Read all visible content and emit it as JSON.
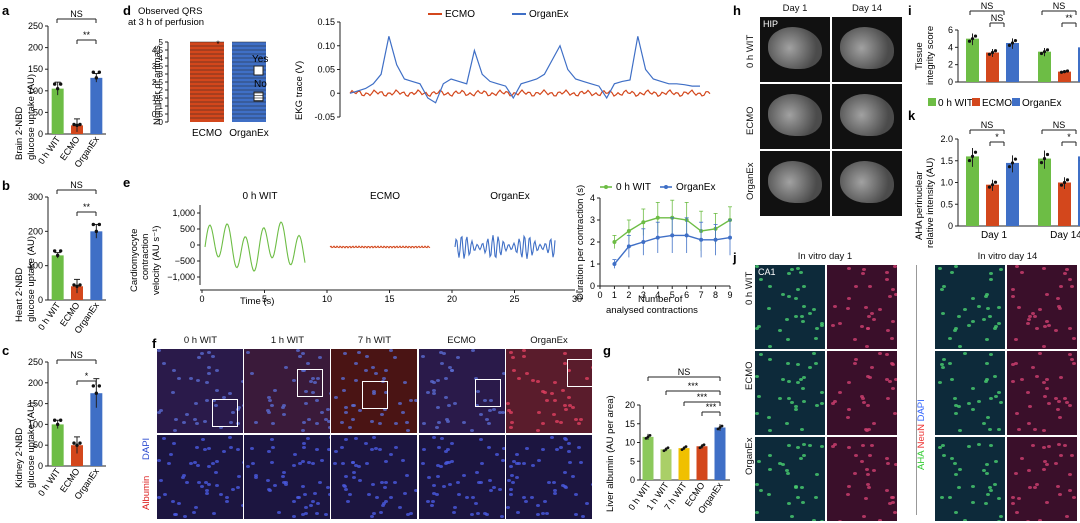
{
  "panel_letters": {
    "a": "a",
    "b": "b",
    "c": "c",
    "d": "d",
    "e": "e",
    "f": "f",
    "g": "g",
    "h": "h",
    "i": "i",
    "j": "j",
    "k": "k"
  },
  "colors": {
    "wit": "#6dbd45",
    "ecmo": "#d3471c",
    "organex": "#3f6fc6",
    "wit1": "#aacf67",
    "wit7": "#f0c000",
    "wit0light": "#8cc95c"
  },
  "chart_data": [
    {
      "id": "a",
      "type": "bar",
      "categories": [
        "0 h WIT",
        "ECMO",
        "OrganEx"
      ],
      "values": [
        105,
        20,
        130
      ],
      "errors": [
        15,
        15,
        10
      ],
      "ylabel": "Brain 2-NBD glucose uptake (AU)",
      "ylim": [
        0,
        250
      ],
      "yticks": [
        0,
        50,
        100,
        150,
        200,
        250
      ],
      "annotations": [
        "NS",
        "**"
      ]
    },
    {
      "id": "b",
      "type": "bar",
      "categories": [
        "0 h WIT",
        "ECMO",
        "OrganEx"
      ],
      "values": [
        130,
        40,
        200
      ],
      "errors": [
        8,
        20,
        20
      ],
      "ylabel": "Heart 2-NBD glucose uptake (AU)",
      "ylim": [
        0,
        300
      ],
      "yticks": [
        0,
        100,
        200,
        300
      ],
      "annotations": [
        "NS",
        "**"
      ]
    },
    {
      "id": "c",
      "type": "bar",
      "categories": [
        "0 h WIT",
        "ECMO",
        "OrganEx"
      ],
      "values": [
        100,
        50,
        175
      ],
      "errors": [
        10,
        20,
        35
      ],
      "ylabel": "Kidney 2-NBD glucose uptake (AU)",
      "ylim": [
        0,
        250
      ],
      "yticks": [
        0,
        50,
        100,
        150,
        200,
        250
      ],
      "annotations": [
        "NS",
        "*"
      ]
    },
    {
      "id": "d1",
      "type": "bar",
      "title": "Observed QRS at 3 h of perfusion",
      "categories": [
        "ECMO",
        "OrganEx"
      ],
      "values": [
        5,
        5
      ],
      "ylabel": "Number of animals",
      "ylim": [
        0,
        5
      ],
      "yticks": [
        0,
        0.5,
        1,
        1.5,
        2,
        2.5,
        3,
        3.5,
        4,
        4.5,
        5
      ],
      "legend": [
        "Yes",
        "No"
      ],
      "annotations": [
        "*"
      ]
    },
    {
      "id": "d2",
      "type": "line",
      "ylabel": "EKG trace (V)",
      "ylim": [
        -0.05,
        0.15
      ],
      "yticks": [
        -0.05,
        0,
        0.05,
        0.1,
        0.15
      ],
      "series": [
        {
          "name": "ECMO"
        },
        {
          "name": "OrganEx"
        }
      ]
    },
    {
      "id": "e1",
      "type": "line",
      "ylabel": "Cardiomyocyte contraction velocity (AU s⁻¹)",
      "xlabel": "Time (s)",
      "yticks": [
        "1,000",
        "500",
        "0",
        "−500",
        "−1,000"
      ],
      "xticks": [
        0,
        5,
        10,
        15,
        20,
        25,
        30
      ],
      "titles": [
        "0 h WIT",
        "ECMO",
        "OrganEx"
      ]
    },
    {
      "id": "e2",
      "type": "line",
      "ylabel": "Duration per contraction (s)",
      "xlabel": "Number of analysed contractions",
      "xticks": [
        0,
        1,
        2,
        3,
        4,
        5,
        6,
        7,
        8,
        9
      ],
      "yticks": [
        0,
        1,
        2,
        3,
        4
      ],
      "ylim": [
        0,
        4
      ],
      "series": [
        {
          "name": "0 h WIT",
          "x": [
            1,
            2,
            3,
            4,
            5,
            6,
            7,
            8,
            9
          ],
          "y": [
            2.0,
            2.5,
            2.9,
            3.1,
            3.1,
            3.0,
            2.5,
            2.6,
            3.0
          ],
          "err": [
            0.3,
            0.5,
            0.6,
            0.7,
            0.8,
            0.8,
            0.9,
            0.7,
            0.6
          ]
        },
        {
          "name": "OrganEx",
          "x": [
            1,
            2,
            3,
            4,
            5,
            6,
            7,
            8,
            9
          ],
          "y": [
            1.0,
            1.8,
            2.0,
            2.2,
            2.3,
            2.3,
            2.1,
            2.1,
            2.2
          ],
          "err": [
            0.2,
            0.5,
            0.6,
            0.7,
            0.8,
            0.8,
            0.8,
            0.7,
            0.8
          ]
        }
      ]
    },
    {
      "id": "g",
      "type": "bar",
      "categories": [
        "0 h WIT",
        "1 h WIT",
        "7 h WIT",
        "ECMO",
        "OrganEx"
      ],
      "values": [
        11.5,
        8.2,
        8.5,
        9.0,
        14.0
      ],
      "errors": [
        0.8,
        0.5,
        0.5,
        0.6,
        0.9
      ],
      "ylabel": "Liver albumin (AU per area)",
      "ylim": [
        0,
        20
      ],
      "yticks": [
        0,
        5,
        10,
        15,
        20
      ],
      "annotations": [
        "NS",
        "***",
        "***",
        "***"
      ]
    },
    {
      "id": "i",
      "type": "bar",
      "categories": [
        "0 h WIT",
        "ECMO",
        "OrganEx"
      ],
      "groups": [
        "Day 1",
        "Day 14"
      ],
      "values": [
        [
          5,
          3.4,
          4.5
        ],
        [
          3.5,
          1.2,
          4.0
        ]
      ],
      "ylabel": "Tissue integrity score",
      "ylim": [
        0,
        6
      ],
      "yticks": [
        0,
        2,
        4,
        6
      ],
      "annotations": [
        "NS",
        "NS",
        "NS",
        "**"
      ]
    },
    {
      "id": "k",
      "type": "bar",
      "categories": [
        "0 h WIT",
        "ECMO",
        "OrganEx"
      ],
      "groups": [
        "Day 1",
        "Day 14"
      ],
      "values": [
        [
          1.6,
          0.95,
          1.45
        ],
        [
          1.55,
          1.0,
          1.6
        ]
      ],
      "ylabel": "AHA perinuclear relative intensity (AU)",
      "ylim": [
        0,
        2.0
      ],
      "yticks": [
        0,
        0.5,
        1.0,
        1.5,
        2.0
      ],
      "annotations": [
        "NS",
        "*",
        "NS",
        "*"
      ],
      "legend": [
        "0 h WIT",
        "ECMO",
        "OrganEx"
      ]
    }
  ],
  "panel_f": {
    "columns": [
      "0 h WIT",
      "1 h WIT",
      "7 h WIT",
      "ECMO",
      "OrganEx"
    ],
    "side_label_top": "Albumin",
    "side_label_bottom": "DAPI",
    "inset_label": "Albumin"
  },
  "panel_h": {
    "columns": [
      "Day 1",
      "Day 14"
    ],
    "rows": [
      "0 h WIT",
      "ECMO",
      "OrganEx"
    ],
    "tag": "HIP"
  },
  "panel_j": {
    "columns": [
      "In vitro day 1",
      "In vitro day 14"
    ],
    "rows": [
      "0 h WIT",
      "ECMO",
      "OrganEx"
    ],
    "tag": "CA1",
    "legend": [
      "AHA",
      "NeuN",
      "DAPI"
    ]
  }
}
